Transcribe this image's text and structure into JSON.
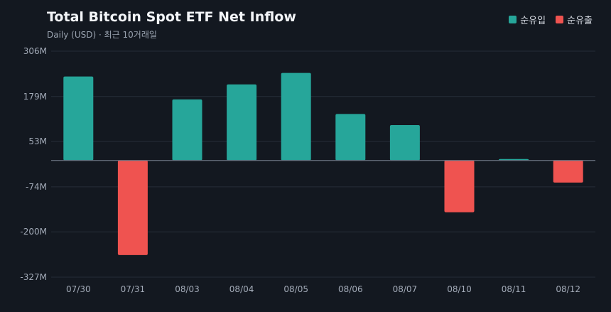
{
  "header": {
    "title": "Total Bitcoin Spot ETF Net Inflow",
    "subtitle": "Daily (USD) · 최근 10거래일"
  },
  "legend": [
    {
      "label": "순유입",
      "color": "#26a69a"
    },
    {
      "label": "순유출",
      "color": "#ef5350"
    }
  ],
  "chart_data": {
    "type": "bar",
    "title": "Total Bitcoin Spot ETF Net Inflow",
    "subtitle": "Daily (USD) · 최근 10거래일",
    "categories": [
      "07/30",
      "07/31",
      "08/03",
      "08/04",
      "08/05",
      "08/06",
      "08/07",
      "08/10",
      "08/11",
      "08/12"
    ],
    "values": [
      235,
      -265,
      171,
      213,
      245,
      130,
      99,
      -145,
      4,
      -62
    ],
    "unit": "M USD",
    "ylim": [
      -327,
      306
    ],
    "yticks": [
      306,
      179,
      53,
      -74,
      -200,
      -327
    ],
    "ytick_labels": [
      "306M",
      "179M",
      "53M",
      "-74M",
      "-200M",
      "-327M"
    ],
    "colors": {
      "positive": "#26a69a",
      "negative": "#ef5350"
    },
    "grid": true,
    "legend_position": "top-right"
  }
}
